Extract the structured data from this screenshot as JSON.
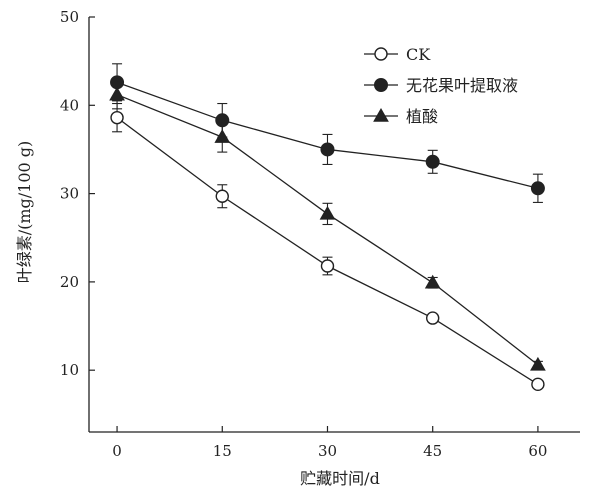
{
  "chart_data": {
    "type": "line",
    "xlabel": "贮藏时间/d",
    "ylabel": "叶绿素/(mg/100 g)",
    "x": [
      0,
      15,
      30,
      45,
      60
    ],
    "xlim": [
      -4,
      66
    ],
    "ylim": [
      3,
      50
    ],
    "xticks": [
      0,
      15,
      30,
      45,
      60
    ],
    "yticks": [
      10,
      20,
      30,
      40,
      50
    ],
    "grid": false,
    "legend_position": "top-right",
    "series": [
      {
        "name": "CK",
        "marker": "circle-open",
        "values": [
          38.6,
          29.7,
          21.8,
          15.9,
          8.4
        ],
        "errors": [
          1.6,
          1.3,
          1.0,
          0.4,
          0.4
        ]
      },
      {
        "name": "无花果叶提取液",
        "marker": "circle-filled",
        "values": [
          42.6,
          38.3,
          35.0,
          33.6,
          30.6
        ],
        "errors": [
          2.1,
          1.9,
          1.7,
          1.3,
          1.6
        ]
      },
      {
        "name": "植酸",
        "marker": "triangle-filled",
        "values": [
          41.2,
          36.4,
          27.7,
          19.9,
          10.6
        ],
        "errors": [
          1.6,
          1.7,
          1.2,
          0.6,
          0.4
        ]
      }
    ]
  },
  "colors": {
    "ink": "#222222",
    "background": "#ffffff"
  }
}
